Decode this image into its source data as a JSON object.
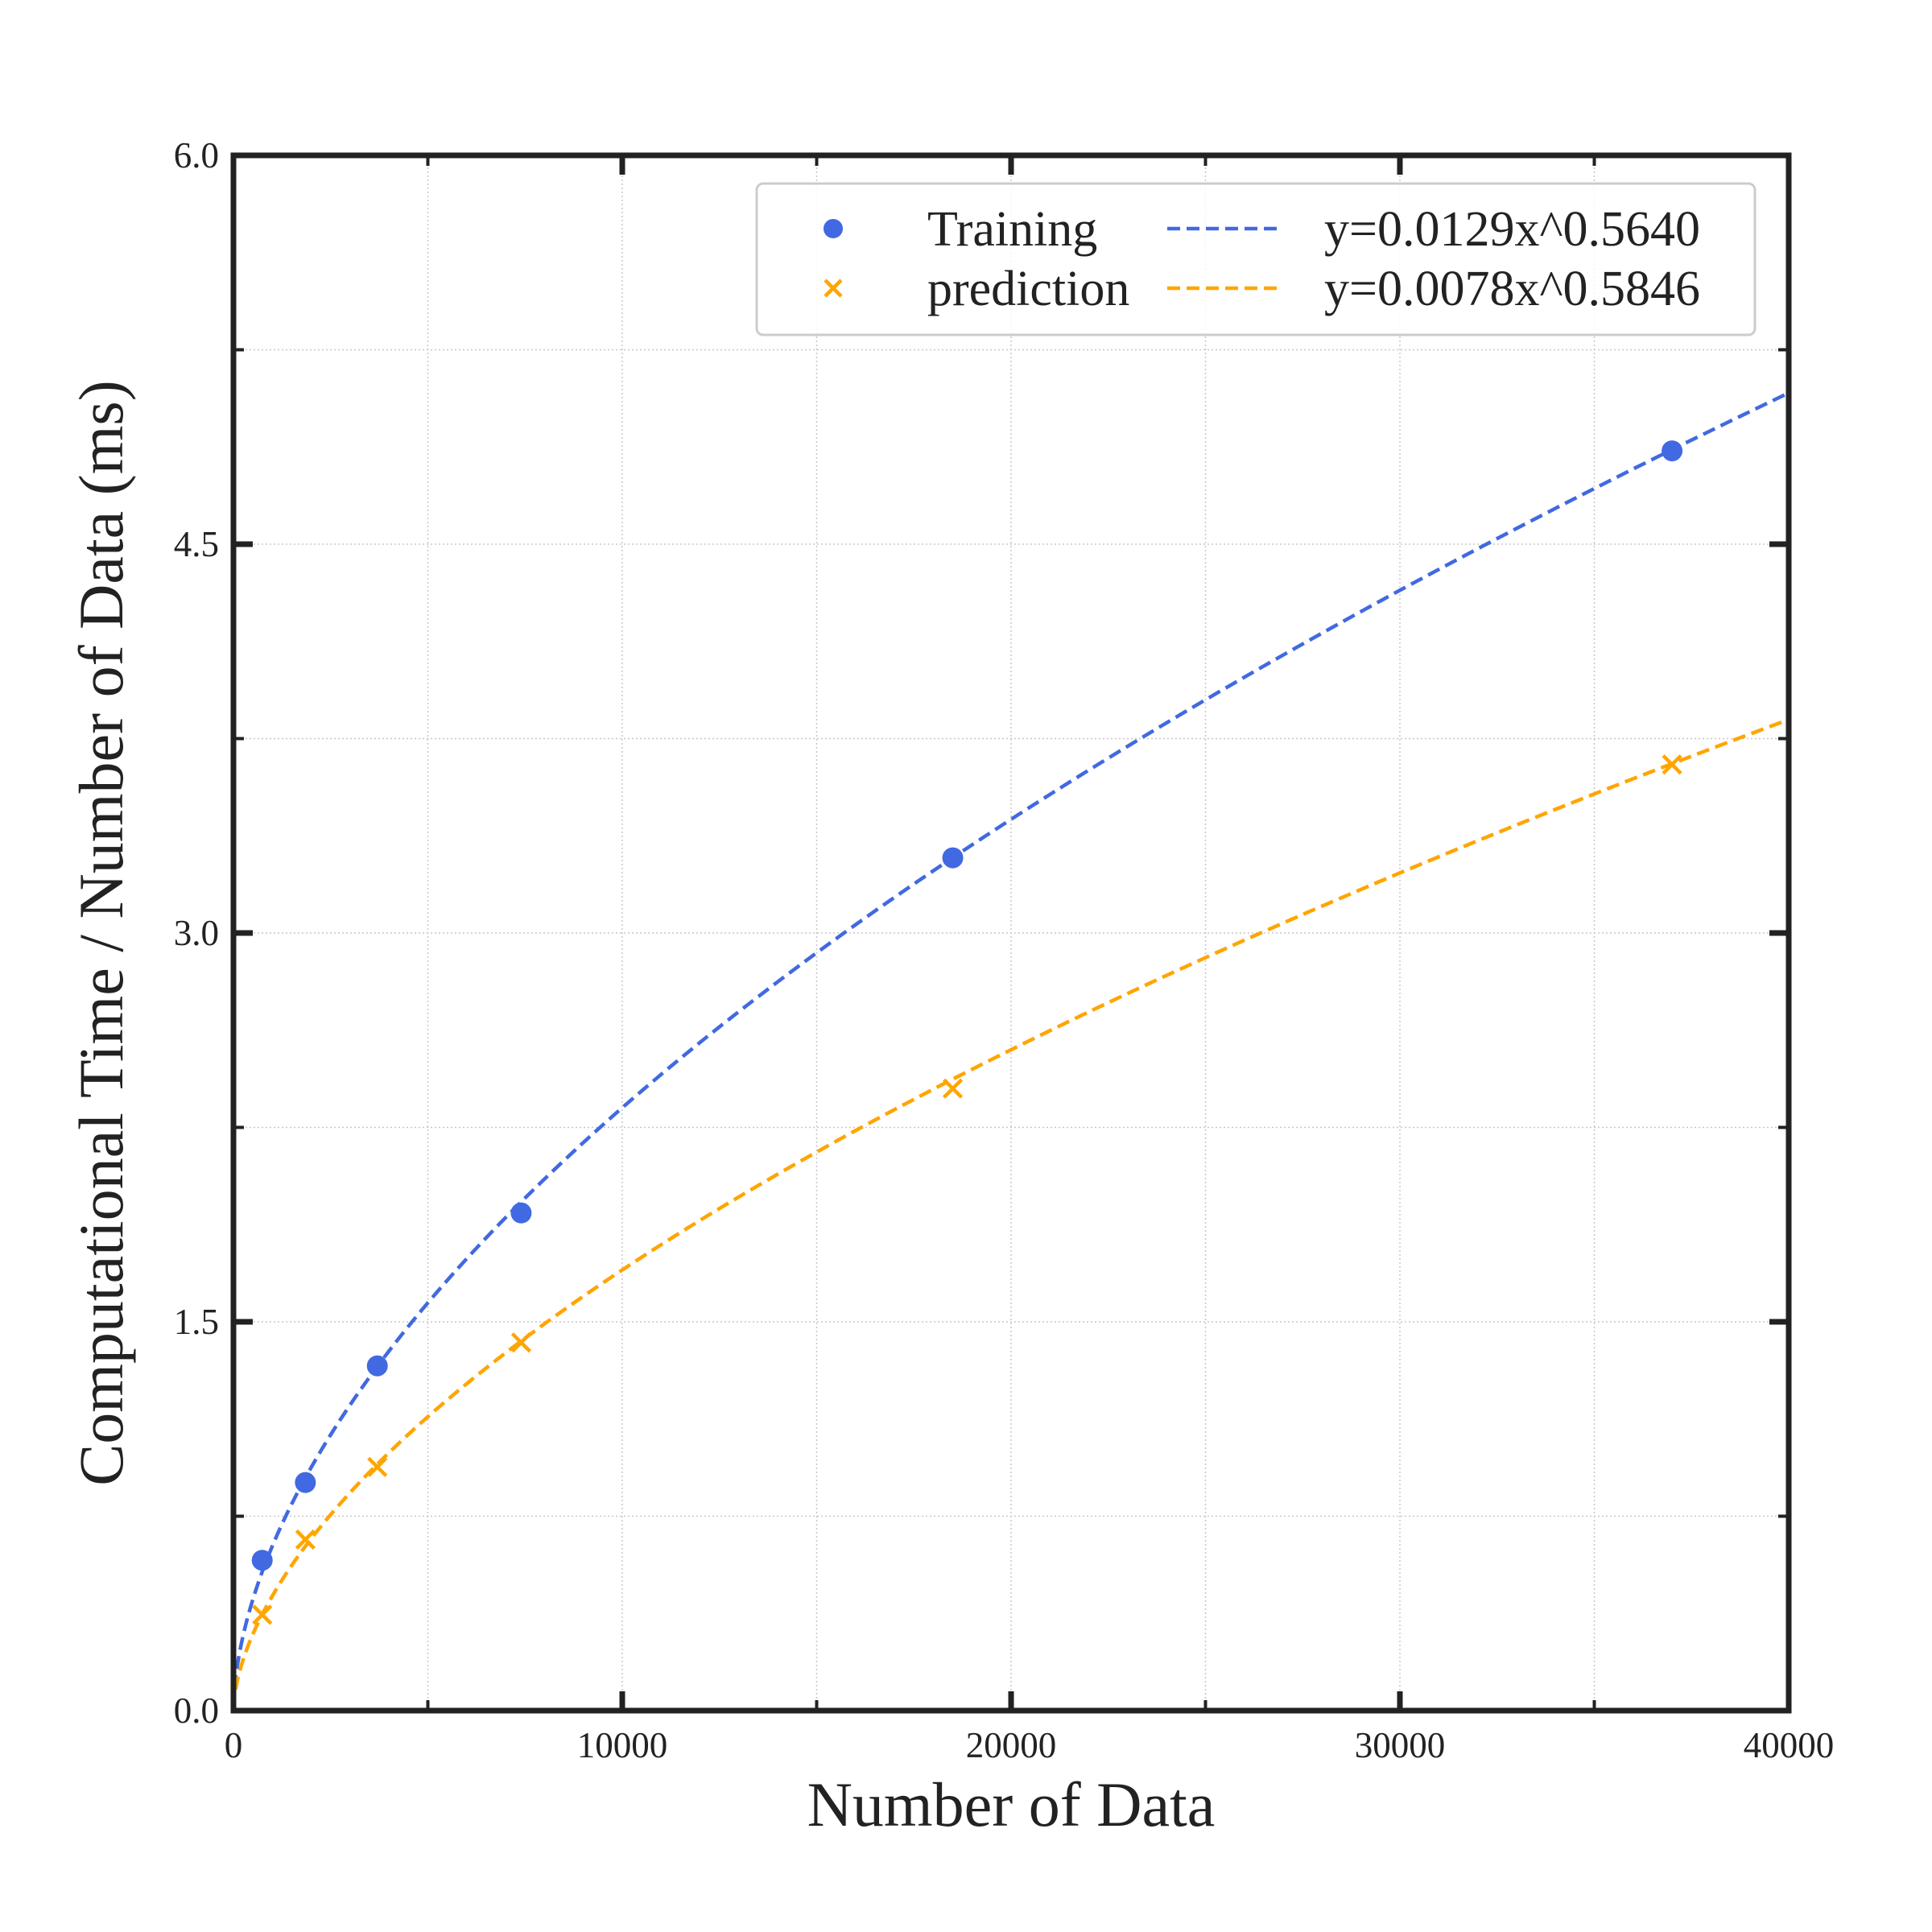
{
  "chart_data": {
    "type": "scatter",
    "title": "",
    "xlabel": "Number of Data",
    "ylabel": "Computational Time / Number of Data (ms)",
    "xlim": [
      0,
      40000
    ],
    "ylim": [
      0,
      6.0
    ],
    "x_ticks": [
      0,
      10000,
      20000,
      30000,
      40000
    ],
    "x_tick_labels": [
      "0",
      "10000",
      "20000",
      "30000",
      "40000"
    ],
    "y_ticks": [
      0.0,
      1.5,
      3.0,
      4.5,
      6.0
    ],
    "y_tick_labels": [
      "0.0",
      "1.5",
      "3.0",
      "4.5",
      "6.0"
    ],
    "grid": true,
    "legend_position": "top-right",
    "series": [
      {
        "name": "Training",
        "kind": "scatter",
        "marker": "circle",
        "color": "#4169e1",
        "x": [
          740,
          1850,
          3700,
          7400,
          18500,
          37000
        ],
        "y": [
          0.58,
          0.88,
          1.33,
          1.92,
          3.29,
          4.86
        ]
      },
      {
        "name": "prediction",
        "kind": "scatter",
        "marker": "x",
        "color": "#ffa500",
        "x": [
          740,
          1850,
          3700,
          7400,
          18500,
          37000
        ],
        "y": [
          0.37,
          0.66,
          0.94,
          1.42,
          2.4,
          3.65
        ]
      },
      {
        "name": "y=0.0129x^0.5640",
        "kind": "fit-line",
        "style": "dashed",
        "color": "#4169e1",
        "coef": 0.0129,
        "exponent": 0.564
      },
      {
        "name": "y=0.0078x^0.5846",
        "kind": "fit-line",
        "style": "dashed",
        "color": "#ffa500",
        "coef": 0.0078,
        "exponent": 0.5846
      }
    ]
  }
}
